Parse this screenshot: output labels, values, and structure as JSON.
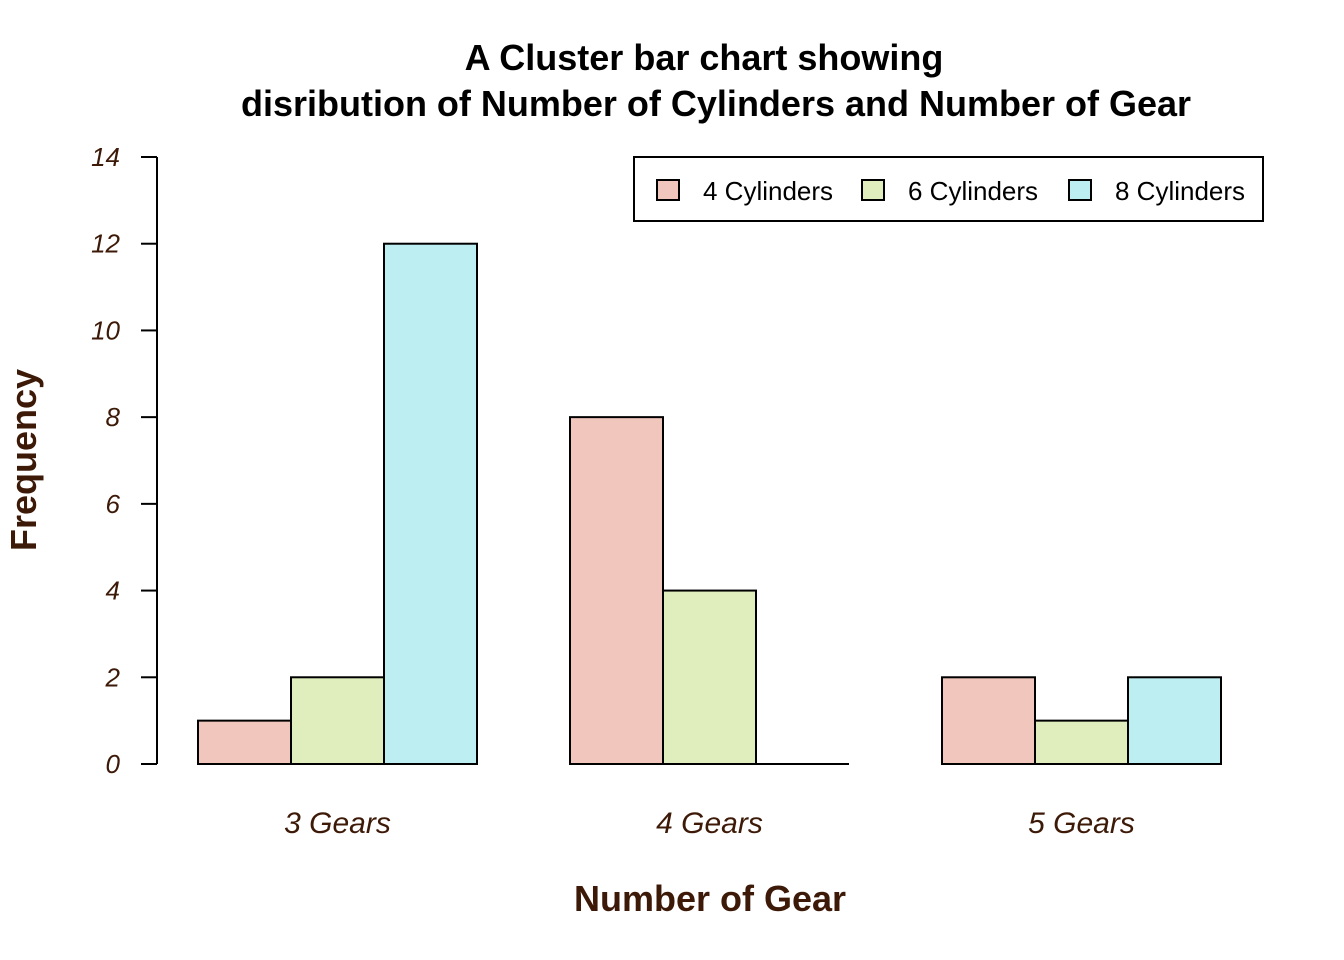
{
  "chart_data": {
    "type": "bar",
    "title_line1": "A Cluster bar chart showing",
    "title_line2": "disribution of Number of Cylinders and Number of Gear",
    "xlabel": "Number of Gear",
    "ylabel": "Frequency",
    "categories": [
      "3 Gears",
      "4 Gears",
      "5 Gears"
    ],
    "series": [
      {
        "name": "4 Cylinders",
        "values": [
          1,
          8,
          2
        ],
        "color": "#f1c6bd"
      },
      {
        "name": "6 Cylinders",
        "values": [
          2,
          4,
          1
        ],
        "color": "#e0eebd"
      },
      {
        "name": "8 Cylinders",
        "values": [
          12,
          0,
          2
        ],
        "color": "#bdeef1"
      }
    ],
    "yticks": [
      "0",
      "2",
      "4",
      "6",
      "8",
      "10",
      "12",
      "14"
    ],
    "ylim": [
      0,
      14
    ],
    "grid": false,
    "legend_position": "top-right"
  }
}
